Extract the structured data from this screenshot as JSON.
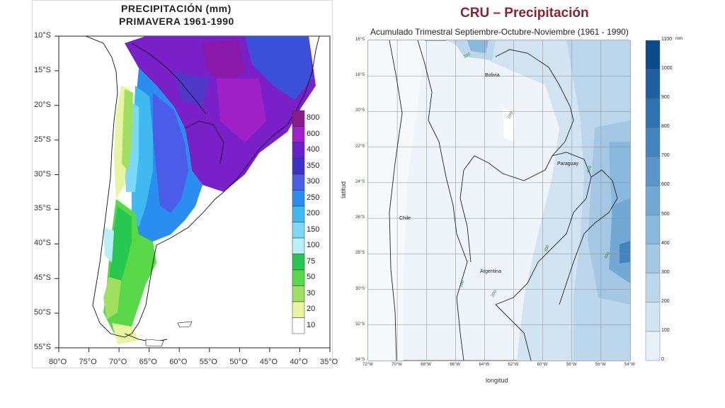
{
  "left_map": {
    "title_line1": "PRECIPITACIÓN  (mm)",
    "title_line2": "PRIMAVERA  1961-1990",
    "lat_ticks": [
      "10°S",
      "15°S",
      "20°S",
      "25°S",
      "30°S",
      "35°S",
      "40°S",
      "45°S",
      "50°S",
      "55°S"
    ],
    "lon_ticks": [
      "80°O",
      "75°O",
      "70°O",
      "65°O",
      "60°O",
      "55°O",
      "50°O",
      "45°O",
      "40°O",
      "35°O"
    ],
    "colorbar": {
      "labels": [
        "800",
        "600",
        "400",
        "350",
        "300",
        "250",
        "200",
        "150",
        "100",
        "75",
        "50",
        "30",
        "20",
        "10"
      ],
      "colors": [
        "#8b1a8b",
        "#a020d0",
        "#6a20d0",
        "#4030c8",
        "#4a5ce8",
        "#2a8ef0",
        "#40b8f0",
        "#7ad8f8",
        "#b8f0f8",
        "#28c850",
        "#58d848",
        "#a0e060",
        "#e8f4a0",
        "#ffffff"
      ]
    }
  },
  "right_map": {
    "title": "CRU – Precipitación",
    "subtitle": "Acumulado Trimestral Septiembre-Octubre-Noviembre (1961 - 1990)",
    "ylabel": "latitud",
    "xlabel": "longitud",
    "lat_ticks": [
      "16°S",
      "18°S",
      "20°S",
      "22°S",
      "24°S",
      "26°S",
      "28°S",
      "30°S",
      "32°S",
      "34°S"
    ],
    "lon_ticks": [
      "72°W",
      "70°W",
      "68°W",
      "66°W",
      "64°W",
      "62°W",
      "60°W",
      "58°W",
      "56°W",
      "54°W"
    ],
    "countries": {
      "bolivia": "Bolivia",
      "paraguay": "Paraguay",
      "chile": "Chile",
      "argentina": "Argentina"
    },
    "contour_labels": [
      "300",
      "100",
      "600",
      "300",
      "100",
      "200",
      "400"
    ],
    "colorbar": {
      "unit": "mm",
      "labels": [
        "1100",
        "1000",
        "900",
        "800",
        "700",
        "600",
        "500",
        "400",
        "300",
        "200",
        "100",
        "0"
      ],
      "colors": [
        "#0d4a8c",
        "#1f5f9f",
        "#2f72b0",
        "#4384bf",
        "#5a96ca",
        "#72a8d4",
        "#8ab8dc",
        "#a4c8e4",
        "#bcd6ec",
        "#d2e4f2",
        "#e6f0f8",
        "#f6f9fc"
      ]
    }
  }
}
